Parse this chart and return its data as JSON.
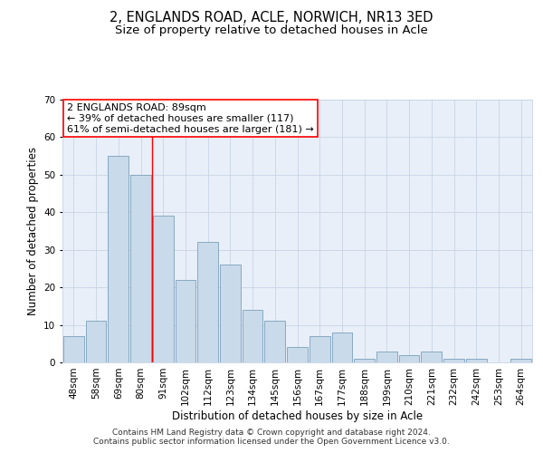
{
  "title": "2, ENGLANDS ROAD, ACLE, NORWICH, NR13 3ED",
  "subtitle": "Size of property relative to detached houses in Acle",
  "xlabel": "Distribution of detached houses by size in Acle",
  "ylabel": "Number of detached properties",
  "categories": [
    "48sqm",
    "58sqm",
    "69sqm",
    "80sqm",
    "91sqm",
    "102sqm",
    "112sqm",
    "123sqm",
    "134sqm",
    "145sqm",
    "156sqm",
    "167sqm",
    "177sqm",
    "188sqm",
    "199sqm",
    "210sqm",
    "221sqm",
    "232sqm",
    "242sqm",
    "253sqm",
    "264sqm"
  ],
  "values": [
    7,
    11,
    55,
    50,
    39,
    22,
    32,
    26,
    14,
    11,
    4,
    7,
    8,
    1,
    3,
    2,
    3,
    1,
    1,
    0,
    1
  ],
  "bar_color": "#c9daea",
  "bar_edge_color": "#7aa0bb",
  "grid_color": "#c8d4e4",
  "background_color": "#e8eff8",
  "red_line_x": 3.5,
  "annotation_line1": "2 ENGLANDS ROAD: 89sqm",
  "annotation_line2": "← 39% of detached houses are smaller (117)",
  "annotation_line3": "61% of semi-detached houses are larger (181) →",
  "footer_text": "Contains HM Land Registry data © Crown copyright and database right 2024.\nContains public sector information licensed under the Open Government Licence v3.0.",
  "ylim": [
    0,
    70
  ],
  "yticks": [
    0,
    10,
    20,
    30,
    40,
    50,
    60,
    70
  ],
  "title_fontsize": 10.5,
  "subtitle_fontsize": 9.5,
  "label_fontsize": 8.5,
  "tick_fontsize": 7.5,
  "footer_fontsize": 6.5,
  "annot_fontsize": 8
}
